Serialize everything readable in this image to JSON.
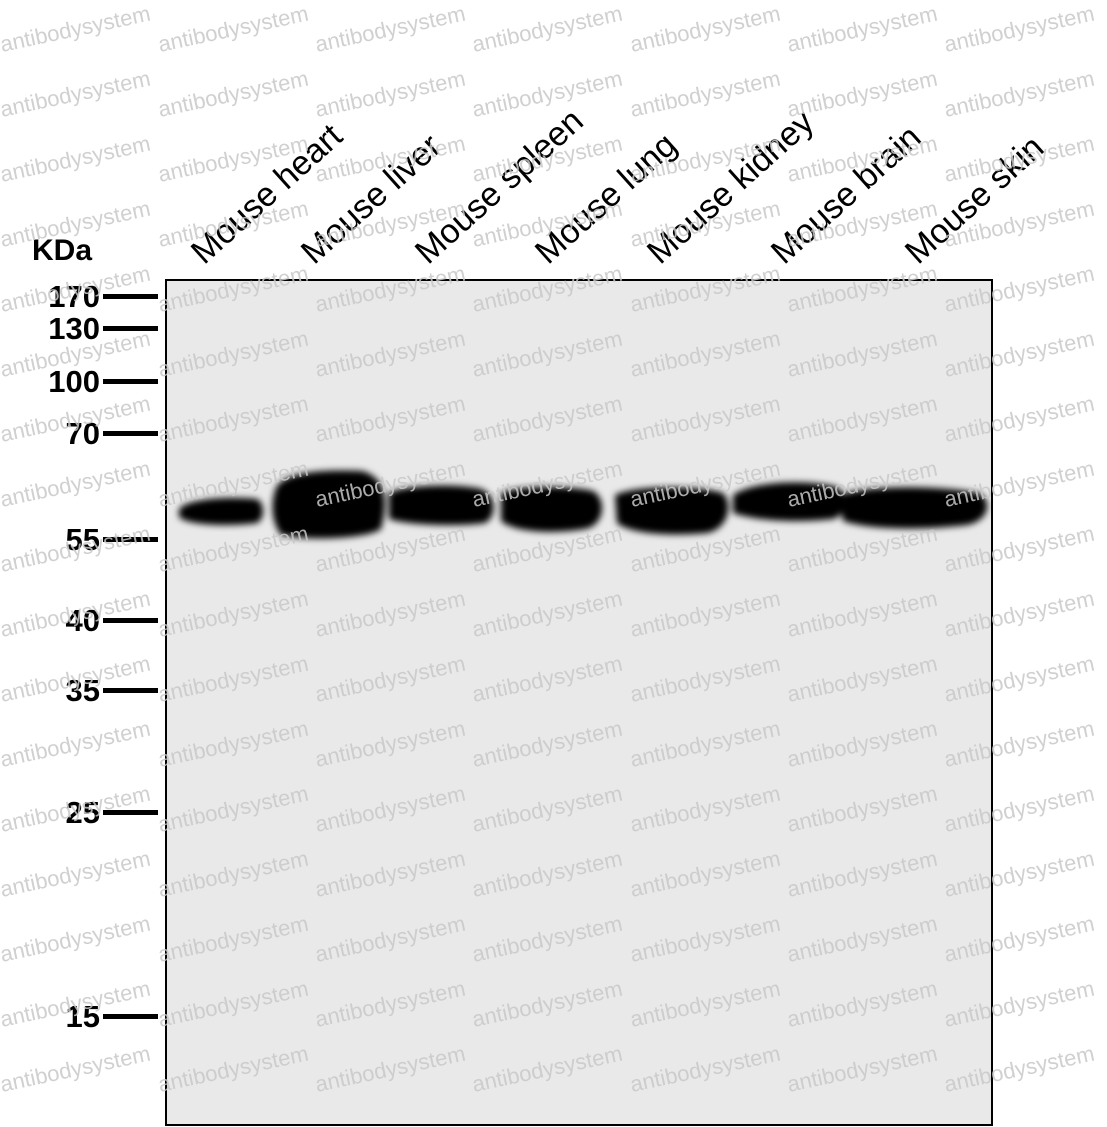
{
  "lanes": [
    {
      "label": "Mouse heart"
    },
    {
      "label": "Mouse liver"
    },
    {
      "label": "Mouse spleen"
    },
    {
      "label": "Mouse lung"
    },
    {
      "label": "Mouse kidney"
    },
    {
      "label": "Mouse brain"
    },
    {
      "label": "Mouse skin"
    }
  ],
  "unit_label": "KDa",
  "markers": [
    {
      "value": "170"
    },
    {
      "value": "130"
    },
    {
      "value": "100"
    },
    {
      "value": "70"
    },
    {
      "value": "55"
    },
    {
      "value": "40"
    },
    {
      "value": "35"
    },
    {
      "value": "25"
    },
    {
      "value": "15"
    }
  ],
  "watermark": "antibodysystem",
  "colors": {
    "background": "#ffffff",
    "membrane": "#e9e9e9",
    "band": "#000000",
    "watermark": "#c8c8c8"
  }
}
